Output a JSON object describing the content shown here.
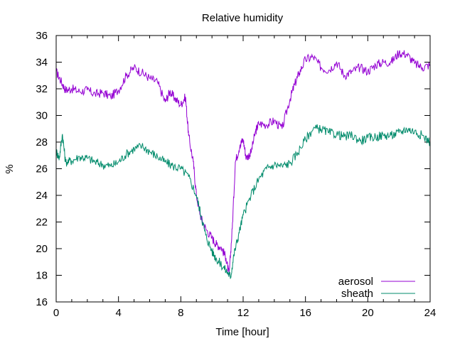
{
  "chart_data": {
    "type": "line",
    "title": "Relative humidity",
    "xlabel": "Time [hour]",
    "ylabel": "%",
    "xlim": [
      0,
      24
    ],
    "ylim": [
      16,
      36
    ],
    "xticks": [
      0,
      4,
      8,
      12,
      16,
      20,
      24
    ],
    "yticks": [
      16,
      18,
      20,
      22,
      24,
      26,
      28,
      30,
      32,
      34,
      36
    ],
    "grid": false,
    "legend_position": "bottom-right",
    "series": [
      {
        "name": "aerosol",
        "color": "#9400d3",
        "x": [
          0,
          0.3,
          0.6,
          1,
          1.5,
          2,
          2.5,
          3,
          3.5,
          4,
          4.5,
          5,
          5.5,
          6,
          6.5,
          7,
          7.3,
          7.6,
          8,
          8.3,
          8.5,
          8.8,
          9,
          9.3,
          9.6,
          10,
          10.3,
          10.6,
          10.9,
          11.1,
          11.3,
          11.5,
          11.8,
          12,
          12.2,
          12.5,
          12.8,
          13,
          13.5,
          14,
          14.5,
          15,
          15.3,
          15.6,
          16,
          16.5,
          17,
          17.5,
          18,
          18.5,
          19,
          19.5,
          20,
          20.5,
          21,
          21.5,
          22,
          22.5,
          23,
          23.5,
          24
        ],
        "y": [
          33.3,
          32.6,
          31.9,
          32.0,
          31.8,
          31.9,
          31.6,
          31.7,
          31.4,
          31.9,
          33.0,
          33.6,
          33.2,
          32.8,
          32.5,
          31.0,
          31.8,
          31.3,
          30.8,
          31.4,
          28.5,
          26.5,
          24.0,
          22.3,
          21.5,
          20.8,
          20.3,
          20.1,
          19.3,
          18.0,
          21.5,
          26.5,
          27.8,
          28.2,
          26.8,
          27.2,
          28.8,
          29.4,
          29.3,
          29.6,
          29.0,
          31.2,
          32.3,
          33.2,
          34.2,
          34.4,
          33.6,
          33.4,
          34.0,
          33.0,
          33.3,
          33.6,
          33.3,
          33.8,
          34.0,
          34.0,
          34.7,
          34.6,
          33.9,
          33.6,
          33.8
        ]
      },
      {
        "name": "sheath",
        "color": "#008b6b",
        "x": [
          0,
          0.2,
          0.4,
          0.6,
          1,
          1.5,
          2,
          2.5,
          3,
          3.5,
          4,
          4.5,
          5,
          5.5,
          6,
          6.5,
          7,
          7.5,
          8,
          8.5,
          9,
          9.3,
          9.6,
          10,
          10.3,
          10.6,
          11,
          11.2,
          11.4,
          11.7,
          12,
          12.5,
          13,
          13.5,
          14,
          14.5,
          15,
          15.5,
          16,
          16.5,
          17,
          17.5,
          18,
          18.5,
          19,
          19.5,
          20,
          20.5,
          21,
          21.5,
          22,
          22.5,
          23,
          23.5,
          24
        ],
        "y": [
          27.3,
          26.8,
          28.6,
          26.5,
          26.6,
          26.9,
          26.8,
          26.5,
          26.3,
          26.2,
          26.5,
          27.1,
          27.5,
          27.7,
          27.3,
          26.9,
          26.5,
          26.2,
          26.0,
          25.4,
          24.0,
          22.5,
          21.0,
          19.8,
          19.2,
          18.8,
          18.2,
          17.9,
          19.5,
          21.0,
          22.5,
          24.0,
          25.2,
          26.0,
          26.3,
          26.2,
          26.4,
          27.2,
          28.2,
          29.0,
          29.0,
          28.7,
          28.6,
          28.4,
          28.5,
          28.1,
          28.3,
          28.4,
          28.5,
          28.5,
          28.7,
          29.0,
          28.8,
          28.5,
          28.0
        ]
      }
    ]
  }
}
